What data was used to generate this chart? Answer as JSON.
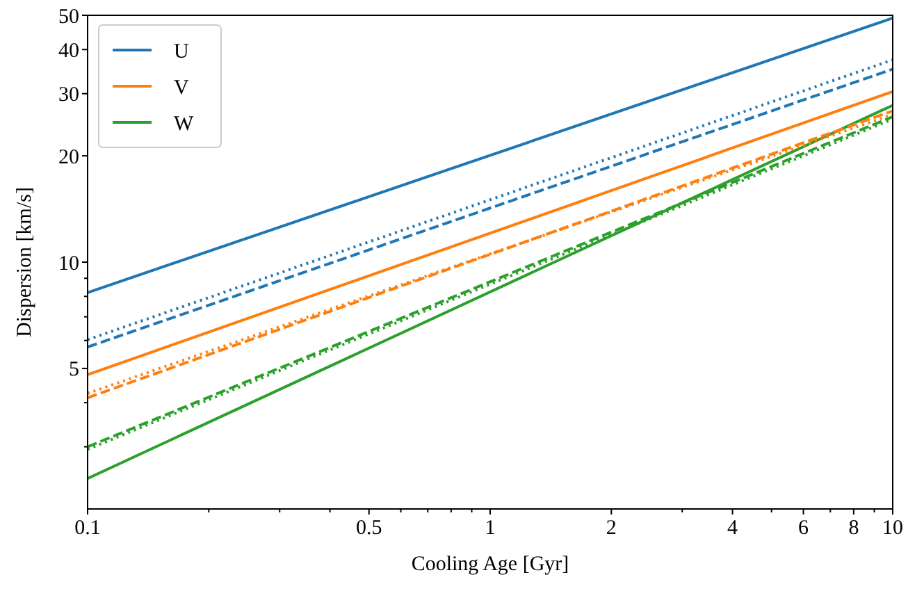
{
  "chart_data": {
    "type": "line",
    "log": "xy",
    "xlabel": "Cooling Age [Gyr]",
    "ylabel": "Dispersion [km/s]",
    "x": [
      0.1,
      10
    ],
    "xlim": [
      0.1,
      10
    ],
    "ylim": [
      2,
      50
    ],
    "xticks": [
      0.1,
      {
        "value": 0.2,
        "label": null
      },
      {
        "value": 0.3,
        "label": null
      },
      {
        "value": 0.4,
        "label": null
      },
      0.5,
      {
        "value": 0.6,
        "label": null
      },
      {
        "value": 0.7,
        "label": null
      },
      {
        "value": 0.8,
        "label": null
      },
      {
        "value": 0.9,
        "label": null
      },
      1,
      2,
      {
        "value": 3,
        "label": null
      },
      4,
      {
        "value": 5,
        "label": null
      },
      6,
      {
        "value": 7,
        "label": null
      },
      8,
      {
        "value": 9,
        "label": null
      },
      10
    ],
    "yticks": [
      {
        "value": 3,
        "label": null
      },
      {
        "value": 4,
        "label": null
      },
      5,
      {
        "value": 6,
        "label": null
      },
      {
        "value": 7,
        "label": null
      },
      {
        "value": 8,
        "label": null
      },
      {
        "value": 9,
        "label": null
      },
      10,
      20,
      30,
      40,
      50
    ],
    "legend": "top left",
    "grid": false,
    "series": [
      {
        "name": "U",
        "color": "#1f77b4",
        "line_style": "solid",
        "values": [
          8.2,
          49.1
        ]
      },
      {
        "name": "V",
        "color": "#ff7f0e",
        "line_style": "solid",
        "values": [
          4.8,
          30.4
        ]
      },
      {
        "name": "W",
        "color": "#2ca02c",
        "line_style": "solid",
        "values": [
          2.44,
          27.8
        ]
      },
      {
        "color": "#1f77b4",
        "line_style": "dashed",
        "values": [
          5.75,
          35.2
        ]
      },
      {
        "color": "#ff7f0e",
        "line_style": "dashed",
        "values": [
          4.13,
          26.8
        ]
      },
      {
        "color": "#2ca02c",
        "line_style": "dashed",
        "values": [
          3.0,
          25.8
        ]
      },
      {
        "color": "#1f77b4",
        "line_style": "dotted",
        "values": [
          6.03,
          37.4
        ]
      },
      {
        "color": "#ff7f0e",
        "line_style": "dotted",
        "values": [
          4.25,
          26.2
        ]
      },
      {
        "color": "#2ca02c",
        "line_style": "dotted",
        "values": [
          2.95,
          25.4
        ]
      }
    ]
  }
}
